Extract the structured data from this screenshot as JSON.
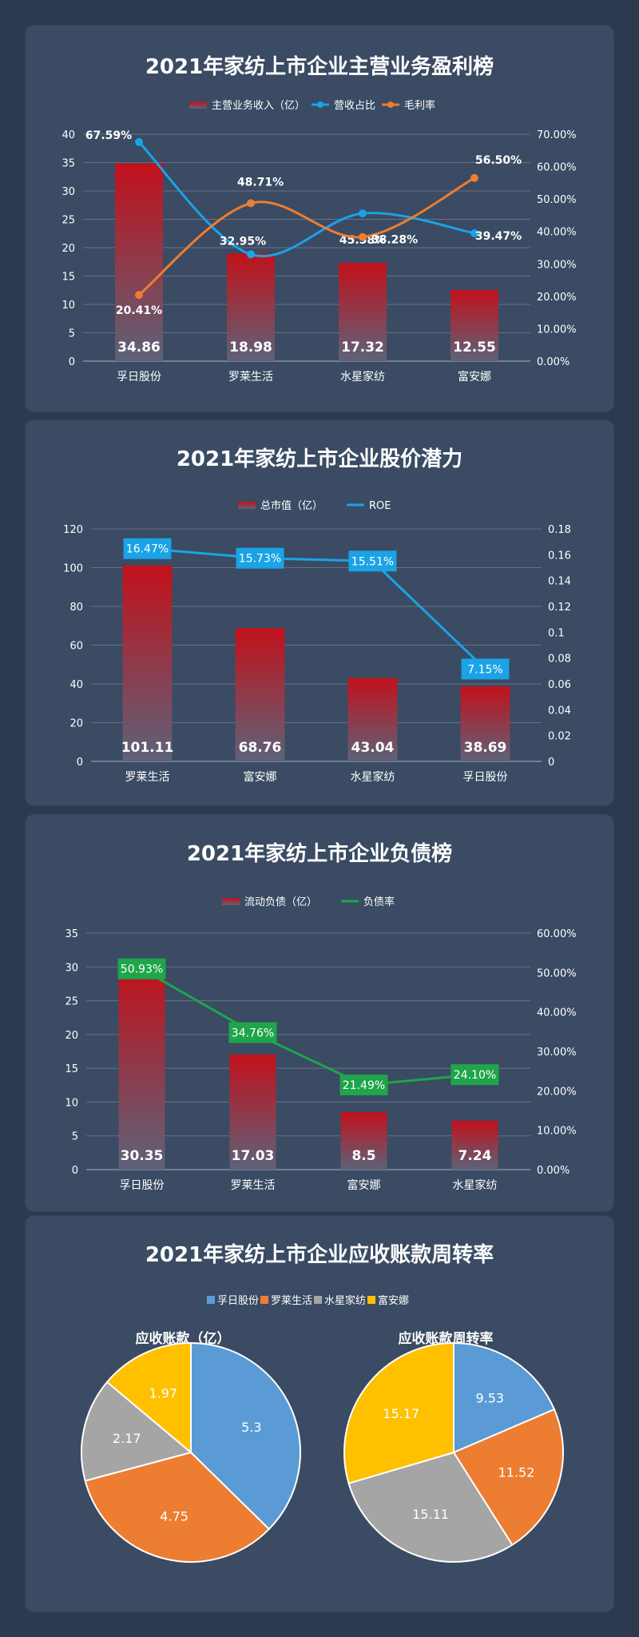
{
  "colors": {
    "bar_top": "#c2111b",
    "bar_bottom": "#5d6279",
    "blue_line": "#1aa3e6",
    "orange_line": "#ed7d31",
    "green_line": "#1fa54a",
    "pie_blue": "#5b9bd5",
    "pie_orange": "#ed7d31",
    "pie_gray": "#a5a5a5",
    "pie_yellow": "#ffc000"
  },
  "chart_data": [
    {
      "type": "bar",
      "title": "2021年家纺上市企业主营业务盈利榜",
      "categories": [
        "孚日股份",
        "罗莱生活",
        "水星家纺",
        "富安娜"
      ],
      "series": [
        {
          "name": "主营业务收入（亿）",
          "type": "bar",
          "axis": "left",
          "values": [
            34.86,
            18.98,
            17.32,
            12.55
          ],
          "labels": [
            "34.86",
            "18.98",
            "17.32",
            "12.55"
          ]
        },
        {
          "name": "营收占比",
          "type": "line",
          "axis": "right",
          "values": [
            0.6759,
            0.3295,
            0.4558,
            0.3947
          ],
          "labels": [
            "67.59%",
            "32.95%",
            "45.58%",
            "39.47%"
          ],
          "color": "#1aa3e6"
        },
        {
          "name": "毛利率",
          "type": "line",
          "axis": "right",
          "values": [
            0.2041,
            0.4871,
            0.3828,
            0.565
          ],
          "labels": [
            "20.41%",
            "48.71%",
            "38.28%",
            "56.50%"
          ],
          "color": "#ed7d31"
        }
      ],
      "ylim": [
        0,
        40
      ],
      "yticks": [
        "0",
        "5",
        "10",
        "15",
        "20",
        "25",
        "30",
        "35",
        "40"
      ],
      "y2lim": [
        0,
        0.7
      ],
      "y2ticks": [
        "0.00%",
        "10.00%",
        "20.00%",
        "30.00%",
        "40.00%",
        "50.00%",
        "60.00%",
        "70.00%"
      ],
      "legend_position": "top"
    },
    {
      "type": "bar",
      "title": "2021年家纺上市企业股价潜力",
      "categories": [
        "罗莱生活",
        "富安娜",
        "水星家纺",
        "孚日股份"
      ],
      "series": [
        {
          "name": "总市值（亿）",
          "type": "bar",
          "axis": "left",
          "values": [
            101.11,
            68.76,
            43.04,
            38.69
          ],
          "labels": [
            "101.11",
            "68.76",
            "43.04",
            "38.69"
          ]
        },
        {
          "name": "ROE",
          "type": "line",
          "axis": "right",
          "values": [
            0.1647,
            0.1573,
            0.1551,
            0.0715
          ],
          "labels": [
            "16.47%",
            "15.73%",
            "15.51%",
            "7.15%"
          ],
          "color": "#1aa3e6"
        }
      ],
      "ylim": [
        0,
        120
      ],
      "yticks": [
        "0",
        "20",
        "40",
        "60",
        "80",
        "100",
        "120"
      ],
      "y2lim": [
        0,
        0.18
      ],
      "y2ticks": [
        "0",
        "0.02",
        "0.04",
        "0.06",
        "0.08",
        "0.1",
        "0.12",
        "0.14",
        "0.16",
        "0.18"
      ],
      "legend_position": "top"
    },
    {
      "type": "bar",
      "title": "2021年家纺上市企业负债榜",
      "categories": [
        "孚日股份",
        "罗莱生活",
        "富安娜",
        "水星家纺"
      ],
      "series": [
        {
          "name": "流动负债（亿）",
          "type": "bar",
          "axis": "left",
          "values": [
            30.35,
            17.03,
            8.5,
            7.24
          ],
          "labels": [
            "30.35",
            "17.03",
            "8.5",
            "7.24"
          ]
        },
        {
          "name": "负债率",
          "type": "line",
          "axis": "right",
          "values": [
            0.5093,
            0.3476,
            0.2149,
            0.241
          ],
          "labels": [
            "50.93%",
            "34.76%",
            "21.49%",
            "24.10%"
          ],
          "color": "#1fa54a"
        }
      ],
      "ylim": [
        0,
        35
      ],
      "yticks": [
        "0",
        "5",
        "10",
        "15",
        "20",
        "25",
        "30",
        "35"
      ],
      "y2lim": [
        0,
        0.6
      ],
      "y2ticks": [
        "0.00%",
        "10.00%",
        "20.00%",
        "30.00%",
        "40.00%",
        "50.00%",
        "60.00%"
      ],
      "legend_position": "top"
    },
    {
      "type": "pie",
      "title": "2021年家纺上市企业应收账款周转率",
      "legend": [
        "孚日股份",
        "罗莱生活",
        "水星家纺",
        "富安娜"
      ],
      "legend_position": "top",
      "pies": [
        {
          "title": "应收账款（亿）",
          "values": [
            5.3,
            4.75,
            2.17,
            1.97
          ],
          "labels": [
            "5.3",
            "4.75",
            "2.17",
            "1.97"
          ]
        },
        {
          "title": "应收账款周转率",
          "values": [
            9.53,
            11.52,
            15.11,
            15.17
          ],
          "labels": [
            "9.53",
            "11.52",
            "15.11",
            "15.17"
          ]
        }
      ]
    }
  ]
}
